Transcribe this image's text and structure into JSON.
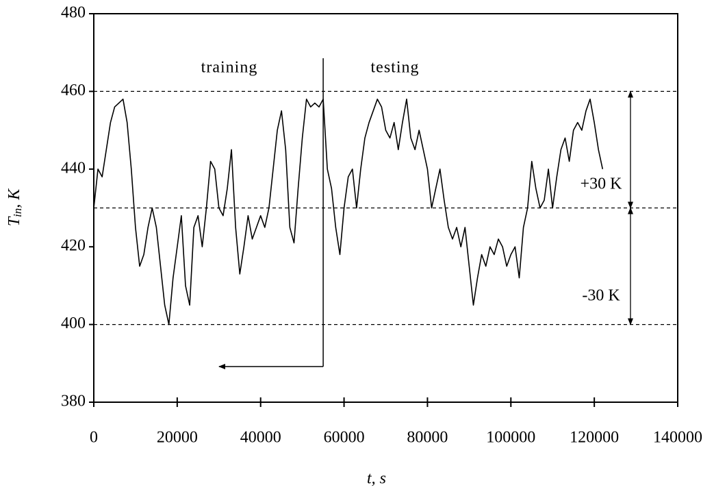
{
  "chart_data": {
    "type": "line",
    "xlabel": "t, s",
    "ylabel": {
      "main": "T",
      "sub": "in",
      "rest": ", K"
    },
    "x": [
      0,
      1000,
      2000,
      3000,
      4000,
      5000,
      6000,
      7000,
      8000,
      9000,
      10000,
      11000,
      12000,
      13000,
      14000,
      15000,
      16000,
      17000,
      18000,
      19000,
      20000,
      21000,
      22000,
      23000,
      24000,
      25000,
      26000,
      27000,
      28000,
      29000,
      30000,
      31000,
      32000,
      33000,
      34000,
      35000,
      36000,
      37000,
      38000,
      39000,
      40000,
      41000,
      42000,
      43000,
      44000,
      45000,
      46000,
      47000,
      48000,
      49000,
      50000,
      51000,
      52000,
      53000,
      54000,
      55000,
      56000,
      57000,
      58000,
      59000,
      60000,
      61000,
      62000,
      63000,
      64000,
      65000,
      66000,
      67000,
      68000,
      69000,
      70000,
      71000,
      72000,
      73000,
      74000,
      75000,
      76000,
      77000,
      78000,
      79000,
      80000,
      81000,
      82000,
      83000,
      84000,
      85000,
      86000,
      87000,
      88000,
      89000,
      90000,
      91000,
      92000,
      93000,
      94000,
      95000,
      96000,
      97000,
      98000,
      99000,
      100000,
      101000,
      102000,
      103000,
      104000,
      105000,
      106000,
      107000,
      108000,
      109000,
      110000,
      111000,
      112000,
      113000,
      114000,
      115000,
      116000,
      117000,
      118000,
      119000,
      120000,
      121000,
      122000
    ],
    "values": [
      430,
      440,
      438,
      445,
      452,
      456,
      457,
      458,
      452,
      440,
      425,
      415,
      418,
      425,
      430,
      425,
      415,
      405,
      400,
      412,
      420,
      428,
      410,
      405,
      425,
      428,
      420,
      430,
      442,
      440,
      430,
      428,
      435,
      445,
      425,
      413,
      420,
      428,
      422,
      425,
      428,
      425,
      430,
      440,
      450,
      455,
      445,
      425,
      421,
      435,
      448,
      458,
      456,
      457,
      456,
      458,
      440,
      435,
      425,
      418,
      430,
      438,
      440,
      430,
      440,
      448,
      452,
      455,
      458,
      456,
      450,
      448,
      452,
      445,
      452,
      458,
      448,
      445,
      450,
      445,
      440,
      430,
      435,
      440,
      432,
      425,
      422,
      425,
      420,
      425,
      415,
      405,
      412,
      418,
      415,
      420,
      418,
      422,
      420,
      415,
      418,
      420,
      412,
      425,
      430,
      442,
      435,
      430,
      432,
      440,
      430,
      438,
      445,
      448,
      442,
      450,
      452,
      450,
      455,
      458,
      452,
      445,
      440
    ],
    "color": "#000000",
    "xlim": [
      0,
      140000
    ],
    "ylim": [
      380,
      480
    ],
    "xticks": [
      0,
      20000,
      40000,
      60000,
      80000,
      100000,
      120000,
      140000
    ],
    "yticks": [
      380,
      400,
      420,
      440,
      460,
      480
    ],
    "hlines": [
      460,
      430,
      400
    ],
    "split_x": 55000,
    "annotations": [
      "training",
      "testing",
      "+30 K",
      "-30 K"
    ]
  }
}
